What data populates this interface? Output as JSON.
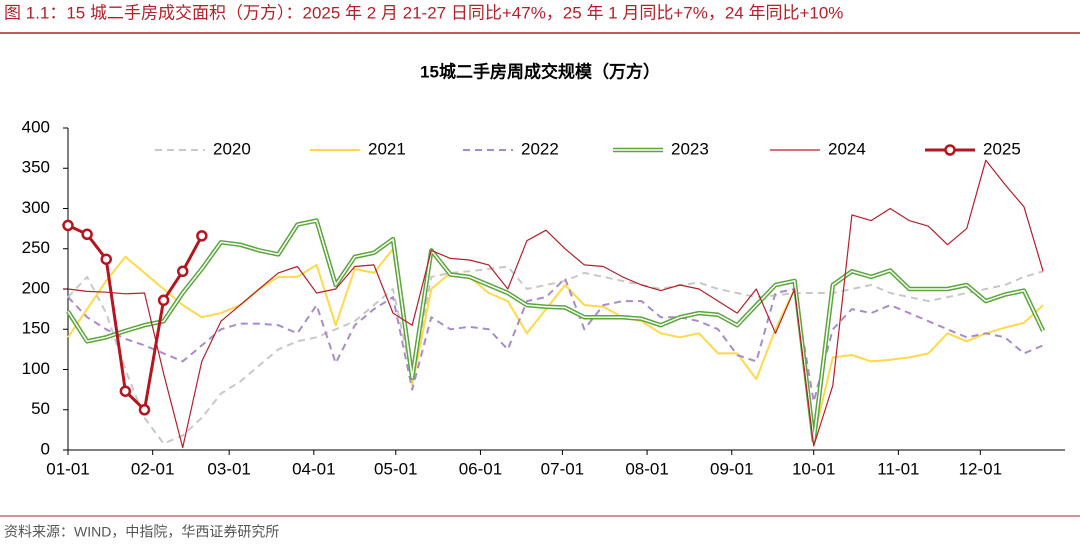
{
  "header": "图 1.1：15 城二手房成交面积（万方）：2025 年 2 月 21-27 日同比+47%，25 年 1 月同比+7%，24 年同比+10%",
  "source": "资料来源：WIND，中指院，华西证券研究所",
  "chart_data": {
    "type": "line",
    "title": "15城二手房周成交规模（万方）",
    "x": [
      0,
      7,
      14,
      21,
      28,
      35,
      42,
      49,
      56,
      63,
      70,
      77,
      84,
      91,
      98,
      105,
      112,
      119,
      126,
      133,
      140,
      147,
      154,
      161,
      168,
      175,
      182,
      189,
      196,
      203,
      210,
      217,
      224,
      231,
      238,
      245,
      252,
      259,
      266,
      273,
      280,
      287,
      294,
      301,
      308,
      315,
      322,
      329,
      336,
      343,
      350,
      357
    ],
    "xlim": [
      0,
      365
    ],
    "xticks": [
      {
        "value": 0,
        "label": "01-01"
      },
      {
        "value": 31,
        "label": "02-01"
      },
      {
        "value": 59,
        "label": "03-01"
      },
      {
        "value": 90,
        "label": "04-01"
      },
      {
        "value": 120,
        "label": "05-01"
      },
      {
        "value": 151,
        "label": "06-01"
      },
      {
        "value": 181,
        "label": "07-01"
      },
      {
        "value": 212,
        "label": "08-01"
      },
      {
        "value": 243,
        "label": "09-01"
      },
      {
        "value": 273,
        "label": "10-01"
      },
      {
        "value": 304,
        "label": "11-01"
      },
      {
        "value": 334,
        "label": "12-01"
      }
    ],
    "ylim": [
      0,
      400
    ],
    "yticks": [
      0,
      50,
      100,
      150,
      200,
      250,
      300,
      350,
      400
    ],
    "series": [
      {
        "name": "2020",
        "color": "#c8c8c8",
        "line_style": "dashed",
        "values": [
          190,
          215,
          170,
          100,
          40,
          8,
          18,
          40,
          70,
          85,
          105,
          125,
          135,
          140,
          150,
          160,
          180,
          200,
          90,
          215,
          220,
          222,
          225,
          228,
          200,
          205,
          210,
          220,
          215,
          210,
          205,
          200,
          205,
          208,
          200,
          195,
          190,
          192,
          195,
          195,
          195,
          200,
          205,
          195,
          190,
          185,
          190,
          195,
          200,
          205,
          215,
          222
        ]
      },
      {
        "name": "2021",
        "color": "#ffd94a",
        "line_style": "solid",
        "values": [
          140,
          175,
          210,
          240,
          220,
          200,
          180,
          165,
          170,
          180,
          200,
          215,
          215,
          230,
          155,
          225,
          220,
          250,
          80,
          200,
          220,
          215,
          195,
          185,
          145,
          175,
          205,
          180,
          178,
          165,
          160,
          145,
          140,
          145,
          120,
          120,
          88,
          150,
          200,
          15,
          115,
          118,
          110,
          112,
          115,
          120,
          145,
          135,
          145,
          152,
          158,
          180
        ]
      },
      {
        "name": "2022",
        "color": "#a98bc9",
        "line_style": "dashed",
        "values": [
          190,
          165,
          150,
          138,
          130,
          120,
          110,
          130,
          150,
          157,
          157,
          155,
          145,
          180,
          108,
          155,
          175,
          190,
          75,
          165,
          150,
          153,
          150,
          125,
          185,
          190,
          213,
          150,
          180,
          185,
          185,
          165,
          165,
          160,
          150,
          118,
          110,
          195,
          200,
          60,
          150,
          175,
          170,
          180,
          170,
          160,
          150,
          140,
          145,
          140,
          120,
          130
        ]
      },
      {
        "name": "2023",
        "color": "#5aa63c",
        "line_style": "double",
        "values": [
          172,
          135,
          140,
          148,
          155,
          160,
          195,
          225,
          258,
          255,
          248,
          243,
          280,
          285,
          205,
          240,
          245,
          262,
          90,
          248,
          218,
          215,
          205,
          195,
          180,
          178,
          177,
          165,
          165,
          165,
          163,
          155,
          165,
          170,
          168,
          155,
          180,
          205,
          210,
          12,
          205,
          222,
          215,
          223,
          200,
          200,
          200,
          205,
          185,
          193,
          198,
          148
        ]
      },
      {
        "name": "2024",
        "color": "#b3202a",
        "line_style": "solid",
        "values": [
          200,
          197,
          196,
          194,
          195,
          95,
          3,
          110,
          160,
          180,
          200,
          220,
          228,
          195,
          200,
          228,
          230,
          170,
          155,
          248,
          238,
          236,
          230,
          200,
          260,
          273,
          250,
          230,
          228,
          215,
          205,
          198,
          205,
          200,
          185,
          170,
          200,
          145,
          200,
          5,
          80,
          292,
          285,
          300,
          285,
          278,
          255,
          275,
          360,
          330,
          302,
          222
        ]
      },
      {
        "name": "2025",
        "color": "#b3161e",
        "line_style": "markers",
        "values": [
          279,
          268,
          237,
          73,
          50,
          186,
          222,
          266,
          null,
          null,
          null,
          null,
          null,
          null,
          null,
          null,
          null,
          null,
          null,
          null,
          null,
          null,
          null,
          null,
          null,
          null,
          null,
          null,
          null,
          null,
          null,
          null,
          null,
          null,
          null,
          null,
          null,
          null,
          null,
          null,
          null,
          null,
          null,
          null,
          null,
          null,
          null,
          null,
          null,
          null,
          null,
          null
        ]
      }
    ]
  }
}
